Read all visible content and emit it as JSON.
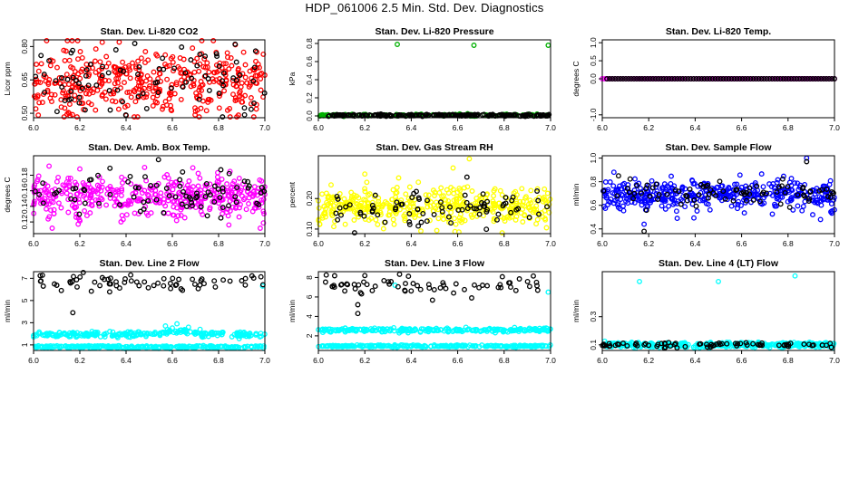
{
  "page": {
    "title": "HDP_061006  2.5 Min. Std. Dev. Diagnostics"
  },
  "chart_data": [
    {
      "type": "scatter",
      "title": "Stan. Dev. Li-820 CO2",
      "xlabel": "",
      "ylabel": "Licor ppm",
      "xlim": [
        6.0,
        7.0
      ],
      "ylim": [
        0.48,
        0.83
      ],
      "xticks": [
        "6.0",
        "6.2",
        "6.4",
        "6.6",
        "6.8",
        "7.0"
      ],
      "yticks": [
        "0.50",
        "0.65",
        "0.80"
      ],
      "series": [
        {
          "name": "primary",
          "color": "#ff0000",
          "pattern": "band",
          "n": 420,
          "center": 0.64,
          "spread": 0.075,
          "x_range": [
            6.0,
            7.0
          ],
          "outliers": [
            [
              6.37,
              0.82
            ],
            [
              6.01,
              0.52
            ],
            [
              6.25,
              0.54
            ],
            [
              6.56,
              0.53
            ],
            [
              6.9,
              0.55
            ]
          ]
        },
        {
          "name": "overlay",
          "color": "#000000",
          "pattern": "band",
          "n": 85,
          "center": 0.635,
          "spread": 0.07,
          "x_range": [
            6.0,
            7.0
          ],
          "outliers": [
            [
              6.96,
              0.78
            ],
            [
              6.68,
              0.74
            ]
          ]
        }
      ]
    },
    {
      "type": "scatter",
      "title": "Stan. Dev. Li-820 Pressure",
      "xlabel": "",
      "ylabel": "kPa",
      "xlim": [
        6.0,
        7.0
      ],
      "ylim": [
        -0.02,
        0.84
      ],
      "xticks": [
        "6.0",
        "6.2",
        "6.4",
        "6.6",
        "6.8",
        "7.0"
      ],
      "yticks": [
        "0.0",
        "0.2",
        "0.4",
        "0.6",
        "0.8"
      ],
      "series": [
        {
          "name": "primary",
          "color": "#00b000",
          "pattern": "band",
          "n": 130,
          "center": 0.008,
          "spread": 0.006,
          "x_range": [
            6.0,
            7.0
          ],
          "outliers": [
            [
              6.34,
              0.79
            ],
            [
              6.67,
              0.78
            ],
            [
              6.99,
              0.78
            ]
          ]
        },
        {
          "name": "overlay",
          "color": "#000000",
          "pattern": "band",
          "n": 220,
          "center": 0.006,
          "spread": 0.005,
          "x_range": [
            6.03,
            7.0
          ],
          "outliers": []
        }
      ]
    },
    {
      "type": "scatter",
      "title": "Stan. Dev. Li-820 Temp.",
      "xlabel": "",
      "ylabel": "degrees C",
      "xlim": [
        6.0,
        7.0
      ],
      "ylim": [
        -1.08,
        1.08
      ],
      "xticks": [
        "6.0",
        "6.2",
        "6.4",
        "6.6",
        "6.8",
        "7.0"
      ],
      "yticks": [
        "-1.0",
        "0.0",
        "0.5",
        "1.0"
      ],
      "series": [
        {
          "name": "primary",
          "color": "#ff00ff",
          "pattern": "line",
          "n": 90,
          "center": 0.0,
          "spread": 0.0,
          "x_range": [
            6.0,
            7.0
          ],
          "outliers": []
        },
        {
          "name": "overlay",
          "color": "#000000",
          "pattern": "line",
          "n": 85,
          "center": 0.0,
          "spread": 0.0,
          "x_range": [
            6.02,
            7.0
          ],
          "outliers": []
        }
      ]
    },
    {
      "type": "scatter",
      "title": "Stan. Dev. Amb. Box Temp.",
      "xlabel": "",
      "ylabel": "degrees C",
      "xlim": [
        6.0,
        7.0
      ],
      "ylim": [
        0.105,
        0.205
      ],
      "xticks": [
        "6.0",
        "6.2",
        "6.4",
        "6.6",
        "6.8",
        "7.0"
      ],
      "yticks": [
        "0.12",
        "0.14",
        "0.16",
        "0.18"
      ],
      "series": [
        {
          "name": "primary",
          "color": "#ff00ff",
          "pattern": "band",
          "n": 420,
          "center": 0.153,
          "spread": 0.014,
          "x_range": [
            6.0,
            7.0
          ],
          "outliers": [
            [
              6.2,
              0.188
            ],
            [
              6.98,
              0.112
            ],
            [
              6.48,
              0.19
            ]
          ]
        },
        {
          "name": "overlay",
          "color": "#000000",
          "pattern": "band",
          "n": 80,
          "center": 0.157,
          "spread": 0.013,
          "x_range": [
            6.0,
            7.0
          ],
          "outliers": [
            [
              6.54,
              0.2
            ],
            [
              6.33,
              0.189
            ],
            [
              6.81,
              0.187
            ]
          ]
        }
      ]
    },
    {
      "type": "scatter",
      "title": "Stan. Dev. Gas Stream RH",
      "xlabel": "",
      "ylabel": "percent",
      "xlim": [
        6.0,
        7.0
      ],
      "ylim": [
        0.085,
        0.34
      ],
      "xticks": [
        "6.0",
        "6.2",
        "6.4",
        "6.6",
        "6.8",
        "7.0"
      ],
      "yticks": [
        "0.10",
        "0.20"
      ],
      "series": [
        {
          "name": "primary",
          "color": "#ffff00",
          "pattern": "band",
          "n": 420,
          "center": 0.175,
          "spread": 0.032,
          "x_range": [
            6.0,
            7.0
          ],
          "outliers": [
            [
              6.51,
              0.095
            ],
            [
              6.65,
              0.33
            ],
            [
              6.58,
              0.3
            ],
            [
              6.2,
              0.28
            ]
          ]
        },
        {
          "name": "overlay",
          "color": "#000000",
          "pattern": "band",
          "n": 80,
          "center": 0.17,
          "spread": 0.03,
          "x_range": [
            6.0,
            7.0
          ],
          "outliers": [
            [
              6.64,
              0.27
            ],
            [
              6.43,
              0.11
            ]
          ]
        }
      ]
    },
    {
      "type": "scatter",
      "title": "Stan. Dev. Sample Flow",
      "xlabel": "",
      "ylabel": "ml/min",
      "xlim": [
        6.0,
        7.0
      ],
      "ylim": [
        0.36,
        1.02
      ],
      "xticks": [
        "6.0",
        "6.2",
        "6.4",
        "6.6",
        "6.8",
        "7.0"
      ],
      "yticks": [
        "0.4",
        "0.6",
        "0.8",
        "1.0"
      ],
      "series": [
        {
          "name": "primary",
          "color": "#0000ff",
          "pattern": "band",
          "n": 420,
          "center": 0.69,
          "spread": 0.06,
          "x_range": [
            6.0,
            7.0
          ],
          "outliers": [
            [
              6.88,
              1.0
            ],
            [
              6.18,
              0.44
            ],
            [
              6.94,
              0.48
            ],
            [
              6.05,
              0.88
            ]
          ]
        },
        {
          "name": "overlay",
          "color": "#000000",
          "pattern": "band",
          "n": 80,
          "center": 0.7,
          "spread": 0.05,
          "x_range": [
            6.0,
            7.0
          ],
          "outliers": [
            [
              6.88,
              0.97
            ],
            [
              6.18,
              0.38
            ],
            [
              6.07,
              0.85
            ]
          ]
        }
      ]
    },
    {
      "type": "scatter",
      "title": "Stan. Dev. Line 2 Flow",
      "xlabel": "",
      "ylabel": "ml/min",
      "xlim": [
        6.0,
        7.0
      ],
      "ylim": [
        0.5,
        7.6
      ],
      "xticks": [
        "6.0",
        "6.2",
        "6.4",
        "6.6",
        "6.8",
        "7.0"
      ],
      "yticks": [
        "1",
        "3",
        "5",
        "7"
      ],
      "series": [
        {
          "name": "upper-band",
          "color": "#00ffff",
          "pattern": "band",
          "n": 260,
          "center": 1.95,
          "spread": 0.12,
          "x_range": [
            6.0,
            7.0
          ],
          "outliers": [
            [
              6.57,
              2.7
            ],
            [
              6.62,
              2.9
            ],
            [
              6.67,
              2.6
            ],
            [
              6.72,
              2.4
            ],
            [
              6.99,
              6.3
            ]
          ]
        },
        {
          "name": "lower-band",
          "color": "#00ffff",
          "pattern": "band",
          "n": 260,
          "center": 0.82,
          "spread": 0.06,
          "x_range": [
            6.0,
            7.0
          ],
          "outliers": []
        },
        {
          "name": "overlay",
          "color": "#000000",
          "pattern": "band",
          "n": 65,
          "center": 6.65,
          "spread": 0.35,
          "x_range": [
            6.0,
            7.0
          ],
          "outliers": [
            [
              6.17,
              3.9
            ],
            [
              6.12,
              5.9
            ],
            [
              6.42,
              7.3
            ]
          ]
        }
      ]
    },
    {
      "type": "scatter",
      "title": "Stan. Dev. Line 3 Flow",
      "xlabel": "",
      "ylabel": "ml/min",
      "xlim": [
        6.0,
        7.0
      ],
      "ylim": [
        0.5,
        8.6
      ],
      "xticks": [
        "6.0",
        "6.2",
        "6.4",
        "6.6",
        "6.8",
        "7.0"
      ],
      "yticks": [
        "2",
        "4",
        "6",
        "8"
      ],
      "series": [
        {
          "name": "upper-band",
          "color": "#00ffff",
          "pattern": "band",
          "n": 260,
          "center": 2.6,
          "spread": 0.1,
          "x_range": [
            6.0,
            7.0
          ],
          "outliers": [
            [
              6.99,
              6.5
            ],
            [
              6.33,
              7.2
            ]
          ]
        },
        {
          "name": "lower-band",
          "color": "#00ffff",
          "pattern": "band",
          "n": 260,
          "center": 0.95,
          "spread": 0.05,
          "x_range": [
            6.0,
            7.0
          ],
          "outliers": []
        },
        {
          "name": "overlay",
          "color": "#000000",
          "pattern": "band",
          "n": 65,
          "center": 7.3,
          "spread": 0.45,
          "x_range": [
            6.0,
            7.0
          ],
          "outliers": [
            [
              6.17,
              4.3
            ],
            [
              6.17,
              5.2
            ],
            [
              6.2,
              8.2
            ],
            [
              6.66,
              5.9
            ]
          ]
        }
      ]
    },
    {
      "type": "scatter",
      "title": "Stan. Dev. Line 4 (LT) Flow",
      "xlabel": "",
      "ylabel": "ml/min",
      "xlim": [
        6.0,
        7.0
      ],
      "ylim": [
        0.06,
        0.62
      ],
      "xticks": [
        "6.0",
        "6.2",
        "6.4",
        "6.6",
        "6.8",
        "7.0"
      ],
      "yticks": [
        "0.1",
        "0.3"
      ],
      "series": [
        {
          "name": "primary",
          "color": "#00ffff",
          "pattern": "band",
          "n": 420,
          "center": 0.1,
          "spread": 0.009,
          "x_range": [
            6.0,
            7.0
          ],
          "outliers": [
            [
              6.16,
              0.55
            ],
            [
              6.5,
              0.55
            ],
            [
              6.83,
              0.59
            ]
          ]
        },
        {
          "name": "overlay",
          "color": "#000000",
          "pattern": "band",
          "n": 75,
          "center": 0.1,
          "spread": 0.008,
          "x_range": [
            6.0,
            7.0
          ],
          "outliers": []
        }
      ]
    }
  ]
}
